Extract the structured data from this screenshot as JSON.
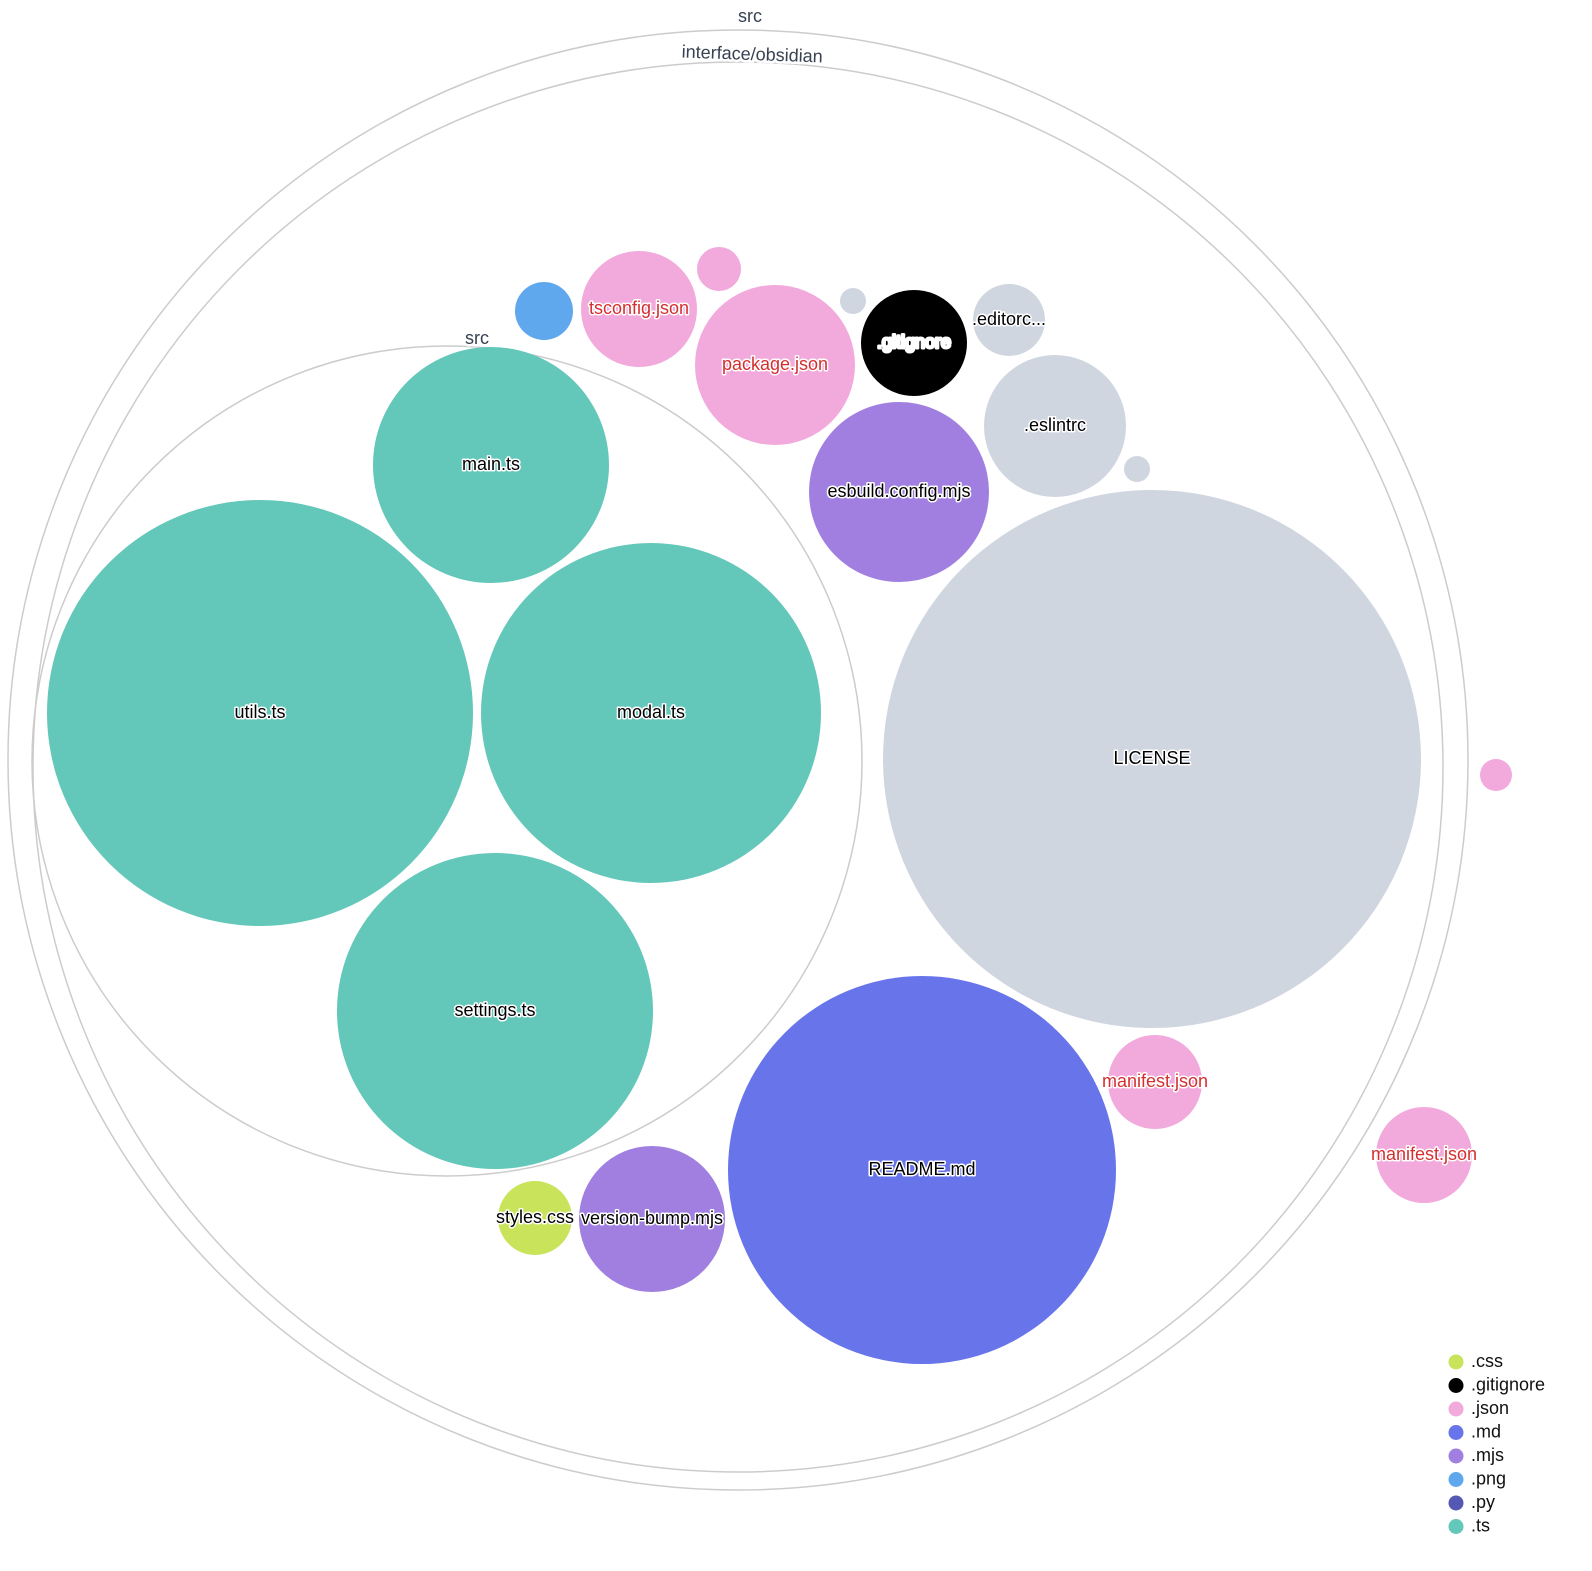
{
  "folders": [
    {
      "label": "src"
    },
    {
      "label": "interface/obsidian"
    },
    {
      "label": "src"
    }
  ],
  "files": [
    {
      "name": "main.ts",
      "ext": ".ts",
      "label": "main.ts"
    },
    {
      "name": "utils.ts",
      "ext": ".ts",
      "label": "utils.ts"
    },
    {
      "name": "modal.ts",
      "ext": ".ts",
      "label": "modal.ts"
    },
    {
      "name": "settings.ts",
      "ext": ".ts",
      "label": "settings.ts"
    },
    {
      "name": "png-file",
      "ext": ".png",
      "label": ""
    },
    {
      "name": "tsconfig.json",
      "ext": ".json",
      "label": "tsconfig.json"
    },
    {
      "name": "json-file",
      "ext": ".json",
      "label": ""
    },
    {
      "name": "package.json",
      "ext": ".json",
      "label": "package.json"
    },
    {
      "name": "other-file",
      "ext": "",
      "label": ""
    },
    {
      "name": ".gitignore",
      "ext": ".gitignore",
      "label": ".gitignore"
    },
    {
      "name": ".editorconfig",
      "ext": "",
      "label": ".editorc..."
    },
    {
      "name": ".eslintrc",
      "ext": "",
      "label": ".eslintrc"
    },
    {
      "name": "other-file",
      "ext": "",
      "label": ""
    },
    {
      "name": "esbuild.config.mjs",
      "ext": ".mjs",
      "label": "esbuild.config.mjs"
    },
    {
      "name": "LICENSE",
      "ext": "",
      "label": "LICENSE"
    },
    {
      "name": "manifest.json",
      "ext": ".json",
      "label": "manifest.json"
    },
    {
      "name": "manifest.json",
      "ext": ".json",
      "label": "manifest.json"
    },
    {
      "name": "json-file",
      "ext": ".json",
      "label": ""
    },
    {
      "name": "README.md",
      "ext": ".md",
      "label": "README.md"
    },
    {
      "name": "styles.css",
      "ext": ".css",
      "label": "styles.css"
    },
    {
      "name": "version-bump.mjs",
      "ext": ".mjs",
      "label": "version-bump.mjs"
    }
  ],
  "colors": {
    ".css": "#c9e35a",
    ".gitignore": "#000000",
    ".json": "#f2a9dc",
    ".md": "#6874ea",
    ".mjs": "#a07fe0",
    ".png": "#60a8ee",
    ".py": "#5457b3",
    ".ts": "#63c7b9",
    "default": "#d0d6e0",
    "json_label": "#d32f2f"
  },
  "legend": [
    ".css",
    ".gitignore",
    ".json",
    ".md",
    ".mjs",
    ".png",
    ".py",
    ".ts"
  ]
}
